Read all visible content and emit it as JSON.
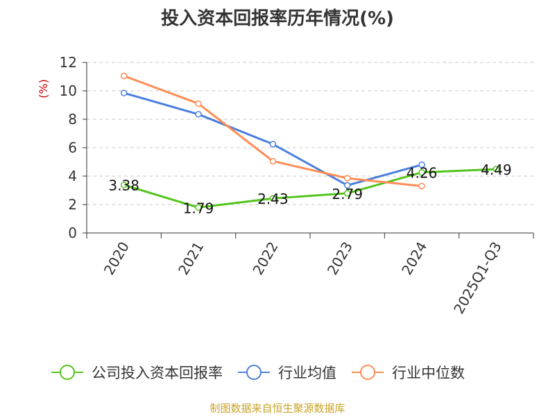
{
  "title": "投入资本回报率历年情况(%)",
  "source": "制图数据来自恒生聚源数据库",
  "chart_data": {
    "type": "line",
    "title": "投入资本回报率历年情况(%)",
    "ylabel": "(%)",
    "xlabel": "",
    "categories": [
      "2020",
      "2021",
      "2022",
      "2023",
      "2024",
      "2025Q1-Q3"
    ],
    "ylim": [
      0,
      12
    ],
    "yticks": [
      "0",
      "2",
      "4",
      "6",
      "8",
      "10",
      "12"
    ],
    "grid": true,
    "legend_position": "bottom",
    "series": [
      {
        "name": "公司投入资本回报率",
        "color": "#52c41a",
        "values": [
          3.38,
          1.79,
          2.43,
          2.79,
          4.26,
          4.49
        ],
        "labels": [
          "3.38",
          "1.79",
          "2.43",
          "2.79",
          "4.26",
          "4.49"
        ]
      },
      {
        "name": "行业均值",
        "color": "#4a7fdc",
        "values": [
          9.85,
          8.35,
          6.25,
          3.35,
          4.8,
          null
        ]
      },
      {
        "name": "行业中位数",
        "color": "#ff8c55",
        "values": [
          11.05,
          9.1,
          5.05,
          3.85,
          3.3,
          null
        ]
      }
    ]
  }
}
